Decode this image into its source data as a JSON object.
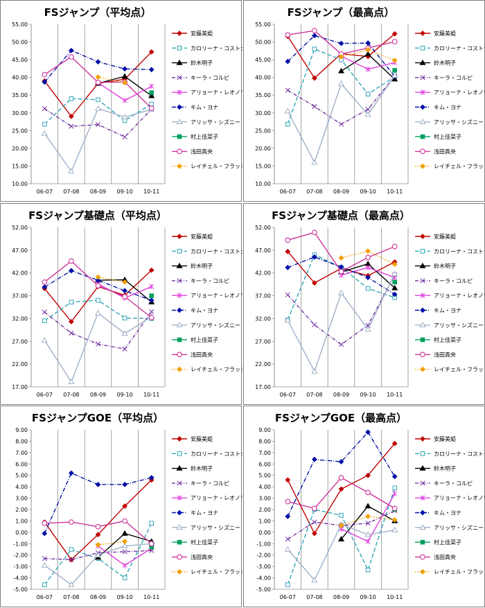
{
  "legend_names": [
    "安藤美姫",
    "カロリーナ・コストナー",
    "鈴木明子",
    "キーラ・コルピ",
    "アリョーナ・レオノワ",
    "キム・ヨナ",
    "アリッサ・シズニー",
    "村上佳菜子",
    "浅田真央",
    "レイチェル・フラット"
  ],
  "series_styles": [
    {
      "color": "#c00000",
      "dash": "",
      "marker": "diamond",
      "fill": "#c00000"
    },
    {
      "color": "#31a6b8",
      "dash": "6,3",
      "marker": "square",
      "fill": "none"
    },
    {
      "color": "#000000",
      "dash": "",
      "marker": "triangle",
      "fill": "#000000"
    },
    {
      "color": "#7030a0",
      "dash": "5,2,1,2",
      "marker": "x",
      "fill": "none"
    },
    {
      "color": "#e040e0",
      "dash": "",
      "marker": "star",
      "fill": "none"
    },
    {
      "color": "#0010a0",
      "dash": "6,2,1,2",
      "marker": "diamond",
      "fill": "#0010b0"
    },
    {
      "color": "#9fb0c8",
      "dash": "",
      "marker": "triangle",
      "fill": "none"
    },
    {
      "color": "#00a060",
      "dash": "",
      "marker": "square",
      "fill": "#00a060"
    },
    {
      "color": "#cc3399",
      "dash": "",
      "marker": "circle",
      "fill": "none"
    },
    {
      "color": "#f0a000",
      "dash": "1.5,2",
      "marker": "diamond",
      "fill": "#f0a000"
    }
  ],
  "chart_data": [
    {
      "type": "line",
      "title": "FSジャンプ（平均点）",
      "categories": [
        "06-07",
        "07-08",
        "08-09",
        "09-10",
        "10-11"
      ],
      "ylim": [
        10,
        55
      ],
      "ystep": 5,
      "ytick_decimals": 2,
      "grid": "vertical",
      "legend": "right",
      "series": [
        {
          "name": "安藤美姫",
          "values": [
            39.0,
            29.0,
            38.3,
            39.5,
            47.2
          ]
        },
        {
          "name": "カロリーナ・コストナー",
          "values": [
            26.8,
            34.0,
            33.7,
            27.8,
            32.5
          ]
        },
        {
          "name": "鈴木明子",
          "values": [
            null,
            null,
            38.3,
            40.3,
            34.8
          ]
        },
        {
          "name": "キーラ・コルピ",
          "values": [
            31.2,
            26.2,
            26.7,
            23.2,
            31.0
          ]
        },
        {
          "name": "アリョーナ・レオノワ",
          "values": [
            null,
            null,
            38.5,
            33.5,
            37.5
          ]
        },
        {
          "name": "キム・ヨナ",
          "values": [
            38.7,
            47.6,
            44.4,
            42.4,
            42.2
          ]
        },
        {
          "name": "アリッサ・シズニー",
          "values": [
            24.2,
            13.5,
            31.2,
            28.8,
            31.0
          ]
        },
        {
          "name": "村上佳菜子",
          "values": [
            null,
            null,
            null,
            null,
            35.7
          ]
        },
        {
          "name": "浅田真央",
          "values": [
            40.8,
            45.8,
            38.6,
            38.7,
            31.3
          ]
        },
        {
          "name": "レイチェル・フラット",
          "values": [
            null,
            null,
            40.1,
            38.5,
            null
          ]
        }
      ]
    },
    {
      "type": "line",
      "title": "FSジャンプ（最高点）",
      "categories": [
        "06-07",
        "07-08",
        "08-09",
        "09-10",
        "10-11"
      ],
      "ylim": [
        10,
        55
      ],
      "ystep": 5,
      "ytick_decimals": 2,
      "grid": "vertical",
      "legend": "right",
      "series": [
        {
          "name": "安藤美姫",
          "values": [
            51.6,
            39.8,
            46.7,
            45.9,
            52.3
          ]
        },
        {
          "name": "カロリーナ・コストナー",
          "values": [
            26.8,
            48.0,
            45.0,
            35.3,
            40.2
          ]
        },
        {
          "name": "鈴木明子",
          "values": [
            null,
            null,
            41.8,
            46.6,
            39.5
          ]
        },
        {
          "name": "キーラ・コルピ",
          "values": [
            36.4,
            31.8,
            26.8,
            31.0,
            40.4
          ]
        },
        {
          "name": "アリョーナ・レオノワ",
          "values": [
            null,
            null,
            46.0,
            42.3,
            44.2
          ]
        },
        {
          "name": "キム・ヨナ",
          "values": [
            44.5,
            51.8,
            49.6,
            49.7,
            40.3
          ]
        },
        {
          "name": "アリッサ・シズニー",
          "values": [
            30.5,
            16.0,
            38.2,
            29.5,
            40.5
          ]
        },
        {
          "name": "村上佳菜子",
          "values": [
            null,
            null,
            null,
            null,
            42.0
          ]
        },
        {
          "name": "浅田真央",
          "values": [
            52.0,
            53.2,
            46.6,
            48.3,
            50.1
          ]
        },
        {
          "name": "レイチェル・フラット",
          "values": [
            null,
            null,
            45.8,
            47.8,
            44.8
          ]
        }
      ]
    },
    {
      "type": "line",
      "title": "FSジャンプ基礎点（平均点）",
      "categories": [
        "06-07",
        "07-08",
        "08-09",
        "09-10",
        "10-11"
      ],
      "ylim": [
        17,
        52
      ],
      "ystep": 5,
      "ytick_decimals": 2,
      "grid": "vertical",
      "legend": "right",
      "series": [
        {
          "name": "安藤美姫",
          "values": [
            38.6,
            31.3,
            39.0,
            37.1,
            42.6
          ]
        },
        {
          "name": "カロリーナ・コストナー",
          "values": [
            31.5,
            35.6,
            36.0,
            32.1,
            32.0
          ]
        },
        {
          "name": "鈴木明子",
          "values": [
            null,
            null,
            40.4,
            40.5,
            35.6
          ]
        },
        {
          "name": "キーラ・コルピ",
          "values": [
            33.4,
            28.8,
            26.4,
            25.3,
            33.5
          ]
        },
        {
          "name": "アリョーナ・レオノワ",
          "values": [
            null,
            null,
            39.6,
            36.5,
            39.0
          ]
        },
        {
          "name": "キム・ヨナ",
          "values": [
            38.9,
            42.5,
            40.4,
            38.1,
            36.0
          ]
        },
        {
          "name": "アリッサ・シズニー",
          "values": [
            27.2,
            18.1,
            33.2,
            28.7,
            32.4
          ]
        },
        {
          "name": "村上佳菜子",
          "values": [
            null,
            null,
            null,
            null,
            37.0
          ]
        },
        {
          "name": "浅田真央",
          "values": [
            40.0,
            44.6,
            39.2,
            36.8,
            32.2
          ]
        },
        {
          "name": "レイチェル・フラット",
          "values": [
            null,
            null,
            41.1,
            40.0,
            null
          ]
        }
      ]
    },
    {
      "type": "line",
      "title": "FSジャンプ基礎点（最高点）",
      "categories": [
        "06-07",
        "07-08",
        "08-09",
        "09-10",
        "10-11"
      ],
      "ylim": [
        17,
        52
      ],
      "ystep": 5,
      "ytick_decimals": 2,
      "grid": "vertical",
      "legend": "right",
      "series": [
        {
          "name": "安藤美姫",
          "values": [
            46.7,
            39.8,
            43.0,
            41.4,
            44.4
          ]
        },
        {
          "name": "カロリーナ・コストナー",
          "values": [
            31.7,
            46.0,
            43.2,
            38.6,
            36.6
          ]
        },
        {
          "name": "鈴木明子",
          "values": [
            null,
            null,
            42.2,
            44.0,
            38.7
          ]
        },
        {
          "name": "キーラ・コルピ",
          "values": [
            37.2,
            30.6,
            26.3,
            30.5,
            41.6
          ]
        },
        {
          "name": "アリョーナ・レオノワ",
          "values": [
            null,
            null,
            41.5,
            43.2,
            41.0
          ]
        },
        {
          "name": "キム・ヨナ",
          "values": [
            43.2,
            45.5,
            43.3,
            41.0,
            37.3
          ]
        },
        {
          "name": "アリッサ・シズニー",
          "values": [
            31.6,
            20.4,
            37.6,
            29.6,
            41.8
          ]
        },
        {
          "name": "村上佳菜子",
          "values": [
            null,
            null,
            null,
            null,
            40.0
          ]
        },
        {
          "name": "浅田真央",
          "values": [
            49.2,
            50.9,
            42.3,
            45.4,
            47.8
          ]
        },
        {
          "name": "レイチェル・フラット",
          "values": [
            null,
            null,
            45.3,
            46.8,
            43.9
          ]
        }
      ]
    },
    {
      "type": "line",
      "title": "FSジャンプGOE（平均点）",
      "categories": [
        "06-07",
        "07-08",
        "08-09",
        "09-10",
        "10-11"
      ],
      "ylim": [
        -5,
        9
      ],
      "ystep": 1,
      "ytick_decimals": 2,
      "grid": "vertical",
      "legend": "right",
      "series": [
        {
          "name": "安藤美姫",
          "values": [
            0.9,
            -2.4,
            -0.2,
            2.3,
            4.6
          ]
        },
        {
          "name": "カロリーナ・コストナー",
          "values": [
            -4.6,
            -1.5,
            -2.3,
            -4.0,
            0.8
          ]
        },
        {
          "name": "鈴木明子",
          "values": [
            null,
            null,
            -2.2,
            -0.1,
            -0.8
          ]
        },
        {
          "name": "キーラ・コルピ",
          "values": [
            -2.3,
            -2.4,
            -1.8,
            -1.7,
            -1.6
          ]
        },
        {
          "name": "アリョーナ・レオノワ",
          "values": [
            null,
            null,
            -1.2,
            -2.9,
            -1.4
          ]
        },
        {
          "name": "キム・ヨナ",
          "values": [
            -0.1,
            5.2,
            4.2,
            4.2,
            4.8
          ]
        },
        {
          "name": "アリッサ・シズニー",
          "values": [
            -2.9,
            -4.6,
            -2.0,
            -1.2,
            -1.0
          ]
        },
        {
          "name": "村上佳菜子",
          "values": [
            null,
            null,
            null,
            null,
            -1.3
          ]
        },
        {
          "name": "浅田真央",
          "values": [
            0.8,
            0.9,
            0.5,
            1.0,
            -1.0
          ]
        },
        {
          "name": "レイチェル・フラット",
          "values": [
            null,
            null,
            -1.1,
            -0.8,
            null
          ]
        }
      ]
    },
    {
      "type": "line",
      "title": "FSジャンプGOE（最高点）",
      "categories": [
        "06-07",
        "07-08",
        "08-09",
        "09-10",
        "10-11"
      ],
      "ylim": [
        -5,
        9
      ],
      "ystep": 1,
      "ytick_decimals": 2,
      "grid": "vertical",
      "legend": "right",
      "series": [
        {
          "name": "安藤美姫",
          "values": [
            4.6,
            -0.1,
            3.8,
            5.0,
            7.8
          ]
        },
        {
          "name": "カロリーナ・コストナー",
          "values": [
            -4.6,
            2.0,
            1.5,
            -3.3,
            3.9
          ]
        },
        {
          "name": "鈴木明子",
          "values": [
            null,
            null,
            -0.6,
            2.3,
            1.0
          ]
        },
        {
          "name": "キーラ・コルピ",
          "values": [
            -0.6,
            0.9,
            0.6,
            0.8,
            1.9
          ]
        },
        {
          "name": "アリョーナ・レオノワ",
          "values": [
            null,
            null,
            0.3,
            -0.8,
            3.4
          ]
        },
        {
          "name": "キム・ヨナ",
          "values": [
            1.4,
            6.4,
            6.2,
            8.8,
            4.9
          ]
        },
        {
          "name": "アリッサ・シズニー",
          "values": [
            -1.5,
            -4.2,
            0.7,
            -0.2,
            0.2
          ]
        },
        {
          "name": "村上佳菜子",
          "values": [
            null,
            null,
            null,
            null,
            2.0
          ]
        },
        {
          "name": "浅田真央",
          "values": [
            2.7,
            2.1,
            4.8,
            3.5,
            2.1
          ]
        },
        {
          "name": "レイチェル・フラット",
          "values": [
            null,
            null,
            0.6,
            1.4,
            1.1
          ]
        }
      ]
    }
  ]
}
